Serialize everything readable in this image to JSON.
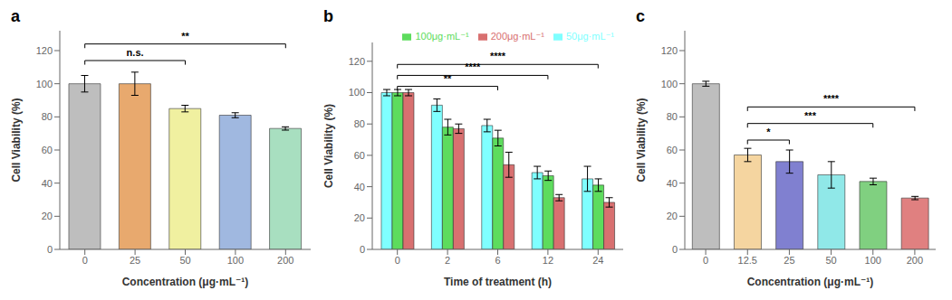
{
  "chart_data": [
    {
      "type": "bar",
      "title": "a",
      "categories": [
        "0",
        "25",
        "50",
        "100",
        "200"
      ],
      "values": [
        100,
        100,
        85,
        81,
        73
      ],
      "errors": [
        5,
        7,
        2,
        1.5,
        1
      ],
      "colors": [
        "#bebebe",
        "#e8a96e",
        "#f0f0a0",
        "#a0b8e0",
        "#a8dfc0"
      ],
      "xlabel": "Concentration (μg·mL⁻¹)",
      "ylabel": "Cell Viability (%)",
      "ylim": [
        0,
        132
      ],
      "yticks": [
        0,
        20,
        40,
        60,
        80,
        100,
        120
      ],
      "grid": false,
      "annotations": [
        {
          "text": "n.s.",
          "x": [
            "0",
            "50"
          ],
          "y": 114
        },
        {
          "text": "**",
          "x": [
            "0",
            "200"
          ],
          "y": 124
        }
      ]
    },
    {
      "type": "bar",
      "title": "b",
      "categories": [
        "0",
        "2",
        "6",
        "12",
        "24"
      ],
      "series": [
        {
          "name": "50μg·mL⁻¹",
          "color": "#7fffff",
          "values": [
            100,
            92,
            79,
            49,
            45
          ],
          "errors": [
            2,
            4,
            4,
            4,
            8
          ]
        },
        {
          "name": "100μg·mL⁻¹",
          "color": "#5ddc5d",
          "values": [
            100,
            78,
            71,
            47,
            41
          ],
          "errors": [
            2,
            5,
            5,
            3,
            4
          ]
        },
        {
          "name": "200μg·mL⁻¹",
          "color": "#d87070",
          "values": [
            100,
            77,
            54,
            33,
            30
          ],
          "errors": [
            2,
            3,
            8,
            2,
            3
          ]
        }
      ],
      "xlabel": "Time of treatment (h)",
      "ylabel": "Cell Viability (%)",
      "ylim": [
        0,
        132
      ],
      "yticks": [
        0,
        20,
        40,
        60,
        80,
        100,
        120
      ],
      "grid": false,
      "legend": "upper right",
      "annotations": [
        {
          "text": "**",
          "x": [
            "0",
            "6"
          ],
          "y": 104
        },
        {
          "text": "****",
          "x": [
            "0",
            "12"
          ],
          "y": 111
        },
        {
          "text": "****",
          "x": [
            "0",
            "24"
          ],
          "y": 118
        }
      ]
    },
    {
      "type": "bar",
      "title": "c",
      "categories": [
        "0",
        "12.5",
        "25",
        "50",
        "100",
        "200"
      ],
      "values": [
        100,
        57,
        53,
        45,
        41,
        31
      ],
      "errors": [
        1.5,
        4,
        7,
        8,
        2,
        1
      ],
      "colors": [
        "#bebebe",
        "#f5d5a0",
        "#8080d0",
        "#90e8e8",
        "#80d080",
        "#e08080"
      ],
      "xlabel": "Concentration (μg·mL⁻¹)",
      "ylabel": "Cell Viability (%)",
      "ylim": [
        0,
        132
      ],
      "yticks": [
        0,
        20,
        40,
        60,
        80,
        100,
        120
      ],
      "grid": false,
      "annotations": [
        {
          "text": "*",
          "x": [
            "12.5",
            "25"
          ],
          "y": 66
        },
        {
          "text": "***",
          "x": [
            "12.5",
            "100"
          ],
          "y": 76
        },
        {
          "text": "****",
          "x": [
            "12.5",
            "200"
          ],
          "y": 86
        }
      ]
    }
  ]
}
